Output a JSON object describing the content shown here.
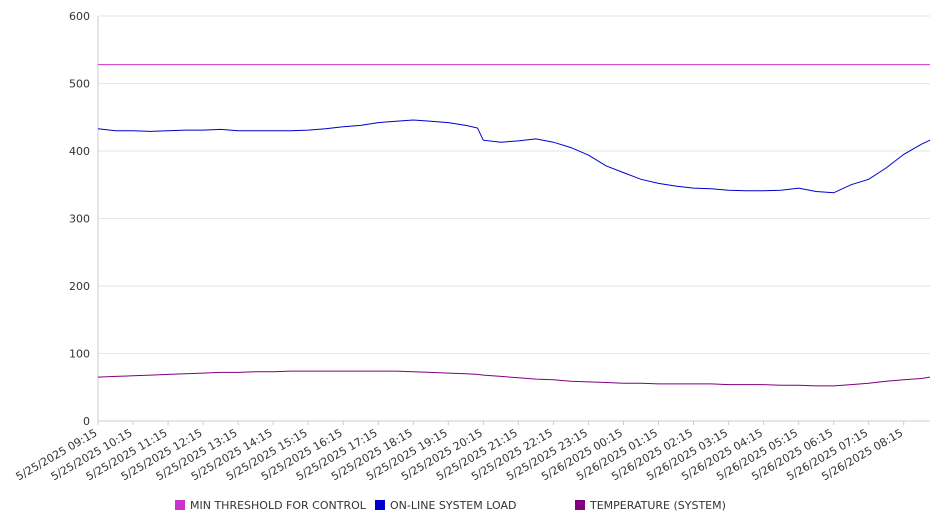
{
  "chart_data": {
    "type": "line",
    "title": "",
    "xlabel": "",
    "ylabel": "",
    "ylim": [
      0,
      600
    ],
    "y_ticks": [
      0,
      100,
      200,
      300,
      400,
      500,
      600
    ],
    "grid": "horizontal",
    "legend_position": "bottom",
    "x_tick_labels": [
      "5/25/2025 09:15",
      "5/25/2025 10:15",
      "5/25/2025 11:15",
      "5/25/2025 12:15",
      "5/25/2025 13:15",
      "5/25/2025 14:15",
      "5/25/2025 15:15",
      "5/25/2025 16:15",
      "5/25/2025 17:15",
      "5/25/2025 18:15",
      "5/25/2025 19:15",
      "5/25/2025 20:15",
      "5/25/2025 21:15",
      "5/25/2025 22:15",
      "5/25/2025 23:15",
      "5/26/2025 00:15",
      "5/26/2025 01:15",
      "5/26/2025 02:15",
      "5/26/2025 03:15",
      "5/26/2025 04:15",
      "5/26/2025 05:15",
      "5/26/2025 06:15",
      "5/26/2025 07:15",
      "5/26/2025 08:15"
    ],
    "x": [
      "5/25/2025 09:15",
      "5/25/2025 09:45",
      "5/25/2025 10:15",
      "5/25/2025 10:45",
      "5/25/2025 11:15",
      "5/25/2025 11:45",
      "5/25/2025 12:15",
      "5/25/2025 12:45",
      "5/25/2025 13:15",
      "5/25/2025 13:45",
      "5/25/2025 14:15",
      "5/25/2025 14:45",
      "5/25/2025 15:15",
      "5/25/2025 15:45",
      "5/25/2025 16:15",
      "5/25/2025 16:45",
      "5/25/2025 17:15",
      "5/25/2025 17:45",
      "5/25/2025 18:15",
      "5/25/2025 18:45",
      "5/25/2025 19:15",
      "5/25/2025 19:45",
      "5/25/2025 20:05",
      "5/25/2025 20:15",
      "5/25/2025 20:45",
      "5/25/2025 21:15",
      "5/25/2025 21:45",
      "5/25/2025 22:15",
      "5/25/2025 22:45",
      "5/25/2025 23:15",
      "5/25/2025 23:45",
      "5/26/2025 00:15",
      "5/26/2025 00:45",
      "5/26/2025 01:15",
      "5/26/2025 01:45",
      "5/26/2025 02:15",
      "5/26/2025 02:45",
      "5/26/2025 03:15",
      "5/26/2025 03:45",
      "5/26/2025 04:15",
      "5/26/2025 04:45",
      "5/26/2025 05:15",
      "5/26/2025 05:45",
      "5/26/2025 06:15",
      "5/26/2025 06:45",
      "5/26/2025 07:15",
      "5/26/2025 07:45",
      "5/26/2025 08:15",
      "5/26/2025 08:45",
      "5/26/2025 09:00"
    ],
    "series": [
      {
        "name": "MIN THRESHOLD FOR CONTROL",
        "color": "#cc33cc",
        "values": [
          528,
          528,
          528,
          528,
          528,
          528,
          528,
          528,
          528,
          528,
          528,
          528,
          528,
          528,
          528,
          528,
          528,
          528,
          528,
          528,
          528,
          528,
          528,
          528,
          528,
          528,
          528,
          528,
          528,
          528,
          528,
          528,
          528,
          528,
          528,
          528,
          528,
          528,
          528,
          528,
          528,
          528,
          528,
          528,
          528,
          528,
          528,
          528,
          528,
          528
        ]
      },
      {
        "name": "ON-LINE SYSTEM LOAD",
        "color": "#0000cc",
        "values": [
          433,
          430,
          430,
          429,
          430,
          431,
          431,
          432,
          430,
          430,
          430,
          430,
          431,
          433,
          436,
          438,
          442,
          444,
          446,
          444,
          442,
          438,
          434,
          416,
          413,
          415,
          418,
          413,
          405,
          394,
          378,
          368,
          358,
          352,
          348,
          345,
          344,
          342,
          341,
          341,
          342,
          345,
          340,
          338,
          350,
          358,
          375,
          395,
          410,
          416
        ]
      },
      {
        "name": "TEMPERATURE (SYSTEM)",
        "color": "#800080",
        "values": [
          65,
          66,
          67,
          68,
          69,
          70,
          71,
          72,
          72,
          73,
          73,
          74,
          74,
          74,
          74,
          74,
          74,
          74,
          73,
          72,
          71,
          70,
          69,
          68,
          66,
          64,
          62,
          61,
          59,
          58,
          57,
          56,
          56,
          55,
          55,
          55,
          55,
          54,
          54,
          54,
          53,
          53,
          52,
          52,
          54,
          56,
          59,
          61,
          63,
          65
        ]
      }
    ]
  }
}
